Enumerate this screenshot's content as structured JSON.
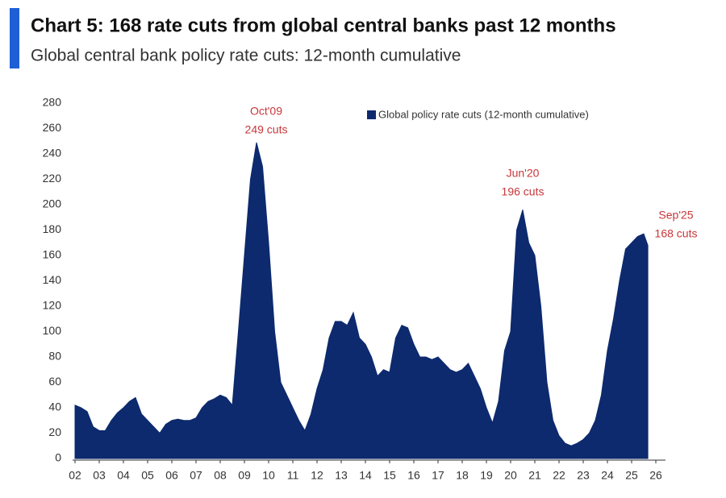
{
  "chart_data": {
    "type": "area",
    "title": "Chart 5: 168 rate cuts from global central banks past 12 months",
    "subtitle": "Global central bank policy rate cuts: 12-month cumulative",
    "x": [
      2002,
      2002.25,
      2002.5,
      2002.75,
      2003,
      2003.25,
      2003.5,
      2003.75,
      2004,
      2004.25,
      2004.5,
      2004.75,
      2005,
      2005.25,
      2005.5,
      2005.75,
      2006,
      2006.25,
      2006.5,
      2006.75,
      2007,
      2007.25,
      2007.5,
      2007.75,
      2008,
      2008.25,
      2008.5,
      2008.75,
      2009,
      2009.25,
      2009.5,
      2009.75,
      2010,
      2010.25,
      2010.5,
      2010.75,
      2011,
      2011.25,
      2011.5,
      2011.75,
      2012,
      2012.25,
      2012.5,
      2012.75,
      2013,
      2013.25,
      2013.5,
      2013.75,
      2014,
      2014.25,
      2014.5,
      2014.75,
      2015,
      2015.25,
      2015.5,
      2015.75,
      2016,
      2016.25,
      2016.5,
      2016.75,
      2017,
      2017.25,
      2017.5,
      2017.75,
      2018,
      2018.25,
      2018.5,
      2018.75,
      2019,
      2019.25,
      2019.5,
      2019.75,
      2020,
      2020.25,
      2020.5,
      2020.75,
      2021,
      2021.25,
      2021.5,
      2021.75,
      2022,
      2022.25,
      2022.5,
      2022.75,
      2023,
      2023.25,
      2023.5,
      2023.75,
      2024,
      2024.25,
      2024.5,
      2024.75,
      2025,
      2025.25,
      2025.5,
      2025.67
    ],
    "series": [
      {
        "name": "Global policy rate cuts (12-month cumulative)",
        "color": "#0d2a6e",
        "values": [
          42,
          40,
          37,
          25,
          22,
          22,
          30,
          36,
          40,
          45,
          48,
          35,
          30,
          25,
          20,
          27,
          30,
          31,
          30,
          30,
          32,
          40,
          45,
          47,
          50,
          48,
          42,
          100,
          160,
          220,
          249,
          230,
          170,
          100,
          60,
          50,
          40,
          30,
          22,
          35,
          55,
          70,
          95,
          108,
          108,
          105,
          115,
          95,
          90,
          80,
          65,
          70,
          68,
          95,
          105,
          103,
          90,
          80,
          80,
          78,
          80,
          75,
          70,
          68,
          70,
          75,
          65,
          55,
          40,
          28,
          45,
          85,
          100,
          180,
          196,
          170,
          160,
          120,
          60,
          30,
          18,
          12,
          10,
          12,
          15,
          20,
          30,
          50,
          85,
          110,
          140,
          165,
          170,
          175,
          177,
          168
        ]
      }
    ],
    "xlim": [
      2001.9,
      2026.4
    ],
    "xticks": [
      {
        "value": 2002,
        "label": "02"
      },
      {
        "value": 2003,
        "label": "03"
      },
      {
        "value": 2004,
        "label": "04"
      },
      {
        "value": 2005,
        "label": "05"
      },
      {
        "value": 2006,
        "label": "06"
      },
      {
        "value": 2007,
        "label": "07"
      },
      {
        "value": 2008,
        "label": "08"
      },
      {
        "value": 2009,
        "label": "09"
      },
      {
        "value": 2010,
        "label": "10"
      },
      {
        "value": 2011,
        "label": "11"
      },
      {
        "value": 2012,
        "label": "12"
      },
      {
        "value": 2013,
        "label": "13"
      },
      {
        "value": 2014,
        "label": "14"
      },
      {
        "value": 2015,
        "label": "15"
      },
      {
        "value": 2016,
        "label": "16"
      },
      {
        "value": 2017,
        "label": "17"
      },
      {
        "value": 2018,
        "label": "18"
      },
      {
        "value": 2019,
        "label": "19"
      },
      {
        "value": 2020,
        "label": "20"
      },
      {
        "value": 2021,
        "label": "21"
      },
      {
        "value": 2022,
        "label": "22"
      },
      {
        "value": 2023,
        "label": "23"
      },
      {
        "value": 2024,
        "label": "24"
      },
      {
        "value": 2025,
        "label": "25"
      },
      {
        "value": 2026,
        "label": "26"
      }
    ],
    "ylim": [
      0,
      280
    ],
    "yticks": [
      0,
      20,
      40,
      60,
      80,
      100,
      120,
      140,
      160,
      180,
      200,
      220,
      240,
      260,
      280
    ],
    "annotations": [
      [
        "Oct'09",
        "249 cuts"
      ],
      [
        "Jun'20",
        "196 cuts"
      ],
      [
        "Sep'25",
        "168 cuts"
      ]
    ],
    "legend": "top-center"
  }
}
